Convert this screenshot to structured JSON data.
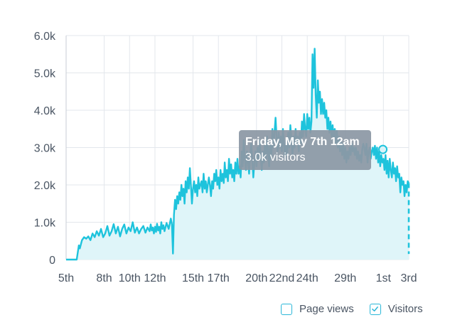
{
  "chart_data": {
    "type": "area",
    "series": [
      {
        "name": "Visitors",
        "color": "#1ec3dc"
      }
    ],
    "ylim": [
      0,
      6000
    ],
    "y_ticks": [
      {
        "value": 0,
        "label": "0"
      },
      {
        "value": 1000,
        "label": "1.0k"
      },
      {
        "value": 2000,
        "label": "2.0k"
      },
      {
        "value": 3000,
        "label": "3.0k"
      },
      {
        "value": 4000,
        "label": "4.0k"
      },
      {
        "value": 5000,
        "label": "5.0k"
      },
      {
        "value": 6000,
        "label": "6.0k"
      }
    ],
    "x_ticks": [
      "5th",
      "8th",
      "10th",
      "12th",
      "15th",
      "17th",
      "20th",
      "22nd",
      "24th",
      "29th",
      "1st",
      "3rd"
    ],
    "x_tick_hours": [
      0,
      72,
      120,
      168,
      240,
      288,
      360,
      408,
      456,
      528,
      600,
      648
    ],
    "x_max_hours": 648,
    "points": [
      [
        0,
        0
      ],
      [
        20,
        0
      ],
      [
        24,
        380
      ],
      [
        26,
        300
      ],
      [
        30,
        520
      ],
      [
        34,
        600
      ],
      [
        38,
        560
      ],
      [
        42,
        620
      ],
      [
        46,
        520
      ],
      [
        50,
        700
      ],
      [
        54,
        600
      ],
      [
        58,
        760
      ],
      [
        62,
        640
      ],
      [
        66,
        820
      ],
      [
        70,
        600
      ],
      [
        74,
        700
      ],
      [
        78,
        900
      ],
      [
        82,
        640
      ],
      [
        86,
        760
      ],
      [
        90,
        950
      ],
      [
        94,
        700
      ],
      [
        98,
        880
      ],
      [
        102,
        620
      ],
      [
        106,
        820
      ],
      [
        110,
        940
      ],
      [
        114,
        700
      ],
      [
        118,
        860
      ],
      [
        122,
        760
      ],
      [
        126,
        1000
      ],
      [
        130,
        720
      ],
      [
        134,
        860
      ],
      [
        138,
        700
      ],
      [
        142,
        820
      ],
      [
        146,
        900
      ],
      [
        150,
        720
      ],
      [
        154,
        860
      ],
      [
        158,
        760
      ],
      [
        160,
        940
      ],
      [
        162,
        780
      ],
      [
        164,
        860
      ],
      [
        166,
        700
      ],
      [
        168,
        880
      ],
      [
        170,
        740
      ],
      [
        172,
        960
      ],
      [
        174,
        780
      ],
      [
        176,
        880
      ],
      [
        178,
        700
      ],
      [
        180,
        1000
      ],
      [
        182,
        820
      ],
      [
        184,
        920
      ],
      [
        186,
        760
      ],
      [
        190,
        980
      ],
      [
        194,
        820
      ],
      [
        198,
        1100
      ],
      [
        200,
        950
      ],
      [
        202,
        160
      ],
      [
        204,
        1200
      ],
      [
        206,
        1600
      ],
      [
        208,
        1350
      ],
      [
        210,
        1700
      ],
      [
        212,
        1500
      ],
      [
        214,
        1800
      ],
      [
        216,
        1600
      ],
      [
        218,
        2000
      ],
      [
        220,
        1700
      ],
      [
        222,
        1900
      ],
      [
        224,
        1500
      ],
      [
        226,
        2100
      ],
      [
        228,
        1800
      ],
      [
        230,
        2200
      ],
      [
        232,
        1900
      ],
      [
        234,
        2450
      ],
      [
        236,
        2000
      ],
      [
        238,
        1500
      ],
      [
        240,
        1900
      ],
      [
        242,
        2100
      ],
      [
        244,
        1800
      ],
      [
        246,
        2000
      ],
      [
        248,
        1700
      ],
      [
        250,
        2200
      ],
      [
        252,
        1900
      ],
      [
        254,
        2000
      ],
      [
        256,
        2100
      ],
      [
        258,
        1800
      ],
      [
        260,
        2300
      ],
      [
        262,
        1900
      ],
      [
        264,
        2100
      ],
      [
        266,
        1800
      ],
      [
        268,
        2000
      ],
      [
        270,
        2200
      ],
      [
        272,
        2000
      ],
      [
        274,
        1700
      ],
      [
        276,
        2100
      ],
      [
        278,
        1900
      ],
      [
        280,
        2300
      ],
      [
        282,
        2100
      ],
      [
        284,
        2400
      ],
      [
        286,
        2000
      ],
      [
        288,
        2200
      ],
      [
        290,
        1900
      ],
      [
        292,
        2400
      ],
      [
        294,
        2100
      ],
      [
        296,
        2300
      ],
      [
        298,
        2050
      ],
      [
        300,
        2600
      ],
      [
        302,
        2200
      ],
      [
        304,
        2400
      ],
      [
        306,
        2100
      ],
      [
        308,
        2700
      ],
      [
        310,
        2300
      ],
      [
        312,
        2550
      ],
      [
        314,
        2200
      ],
      [
        316,
        2400
      ],
      [
        318,
        2100
      ],
      [
        320,
        2600
      ],
      [
        322,
        2300
      ],
      [
        324,
        2700
      ],
      [
        326,
        2300
      ],
      [
        328,
        2500
      ],
      [
        330,
        2200
      ],
      [
        332,
        2900
      ],
      [
        334,
        2500
      ],
      [
        336,
        3200
      ],
      [
        338,
        2700
      ],
      [
        340,
        2400
      ],
      [
        342,
        2900
      ],
      [
        344,
        2600
      ],
      [
        346,
        2300
      ],
      [
        348,
        2800
      ],
      [
        350,
        3100
      ],
      [
        352,
        2700
      ],
      [
        354,
        2200
      ],
      [
        356,
        2600
      ],
      [
        358,
        2900
      ],
      [
        360,
        2500
      ],
      [
        362,
        3000
      ],
      [
        364,
        2700
      ],
      [
        366,
        3200
      ],
      [
        368,
        2800
      ],
      [
        370,
        2400
      ],
      [
        372,
        2900
      ],
      [
        374,
        2600
      ],
      [
        376,
        3100
      ],
      [
        378,
        2700
      ],
      [
        380,
        3300
      ],
      [
        382,
        2900
      ],
      [
        384,
        2500
      ],
      [
        386,
        3100
      ],
      [
        388,
        2700
      ],
      [
        390,
        3500
      ],
      [
        392,
        3000
      ],
      [
        394,
        3400
      ],
      [
        396,
        3800
      ],
      [
        398,
        3300
      ],
      [
        400,
        2900
      ],
      [
        402,
        3400
      ],
      [
        404,
        3000
      ],
      [
        406,
        3300
      ],
      [
        408,
        2900
      ],
      [
        410,
        3500
      ],
      [
        412,
        3100
      ],
      [
        414,
        2700
      ],
      [
        416,
        3200
      ],
      [
        418,
        2800
      ],
      [
        420,
        3400
      ],
      [
        422,
        3000
      ],
      [
        424,
        3600
      ],
      [
        426,
        3200
      ],
      [
        428,
        2800
      ],
      [
        430,
        3300
      ],
      [
        432,
        3000
      ],
      [
        434,
        3500
      ],
      [
        436,
        3100
      ],
      [
        438,
        3300
      ],
      [
        440,
        2900
      ],
      [
        442,
        3400
      ],
      [
        444,
        3100
      ],
      [
        446,
        3700
      ],
      [
        448,
        3300
      ],
      [
        450,
        3900
      ],
      [
        452,
        3500
      ],
      [
        454,
        3300
      ],
      [
        456,
        3900
      ],
      [
        458,
        3500
      ],
      [
        460,
        3800
      ],
      [
        462,
        3400
      ],
      [
        464,
        3700
      ],
      [
        466,
        5500
      ],
      [
        468,
        4600
      ],
      [
        470,
        5650
      ],
      [
        472,
        4400
      ],
      [
        474,
        3800
      ],
      [
        476,
        4800
      ],
      [
        478,
        4200
      ],
      [
        480,
        4500
      ],
      [
        482,
        3900
      ],
      [
        484,
        4300
      ],
      [
        486,
        3900
      ],
      [
        488,
        4200
      ],
      [
        490,
        3800
      ],
      [
        492,
        4000
      ],
      [
        494,
        3500
      ],
      [
        496,
        3800
      ],
      [
        498,
        3400
      ],
      [
        500,
        3700
      ],
      [
        502,
        3300
      ],
      [
        504,
        3600
      ],
      [
        506,
        3200
      ],
      [
        508,
        3500
      ],
      [
        510,
        3100
      ],
      [
        512,
        3450
      ],
      [
        514,
        3000
      ],
      [
        516,
        3300
      ],
      [
        518,
        2900
      ],
      [
        520,
        3200
      ],
      [
        522,
        2800
      ],
      [
        524,
        3100
      ],
      [
        526,
        2700
      ],
      [
        528,
        3000
      ],
      [
        530,
        2600
      ],
      [
        532,
        2900
      ],
      [
        534,
        2700
      ],
      [
        536,
        3000
      ],
      [
        538,
        2800
      ],
      [
        540,
        3100
      ],
      [
        542,
        2900
      ],
      [
        544,
        3000
      ],
      [
        546,
        2800
      ],
      [
        548,
        3000
      ],
      [
        550,
        2700
      ],
      [
        552,
        2900
      ],
      [
        554,
        2650
      ],
      [
        556,
        2800
      ],
      [
        558,
        2600
      ],
      [
        560,
        2950
      ],
      [
        562,
        3100
      ],
      [
        564,
        3000
      ],
      [
        566,
        2800
      ],
      [
        568,
        3100
      ],
      [
        570,
        2600
      ],
      [
        572,
        2900
      ],
      [
        574,
        3000
      ],
      [
        576,
        2700
      ],
      [
        578,
        2900
      ],
      [
        580,
        3000
      ],
      [
        582,
        2800
      ],
      [
        584,
        3050
      ],
      [
        586,
        2700
      ],
      [
        588,
        3000
      ],
      [
        590,
        2600
      ],
      [
        592,
        2900
      ],
      [
        594,
        2500
      ],
      [
        596,
        2800
      ],
      [
        598,
        2600
      ],
      [
        600,
        2700
      ],
      [
        602,
        2400
      ],
      [
        604,
        2800
      ],
      [
        606,
        2300
      ],
      [
        608,
        2650
      ],
      [
        610,
        2200
      ],
      [
        612,
        2700
      ],
      [
        614,
        2400
      ],
      [
        616,
        2200
      ],
      [
        618,
        2600
      ],
      [
        620,
        2300
      ],
      [
        622,
        2450
      ],
      [
        624,
        2100
      ],
      [
        626,
        2500
      ],
      [
        628,
        2200
      ],
      [
        630,
        2300
      ],
      [
        632,
        1800
      ],
      [
        634,
        2200
      ],
      [
        636,
        2000
      ],
      [
        638,
        2100
      ],
      [
        640,
        1700
      ],
      [
        642,
        2000
      ],
      [
        644,
        1800
      ],
      [
        646,
        2100
      ],
      [
        648,
        2050
      ]
    ],
    "highlight_point": [
      599,
      2950
    ],
    "dashed_tail": [
      [
        648,
        2050
      ],
      [
        648,
        150
      ]
    ]
  },
  "tooltip": {
    "title": "Friday, May 7th 12am",
    "value": "3.0k visitors"
  },
  "legend": [
    {
      "label": "Page views",
      "checked": false,
      "color": "#2bb7d8"
    },
    {
      "label": "Visitors",
      "checked": true,
      "color": "#2bb7d8"
    }
  ],
  "colors": {
    "line": "#1ec3dc",
    "fill": "#dff5f9",
    "grid": "#e3e7ec",
    "text": "#4a5563"
  }
}
